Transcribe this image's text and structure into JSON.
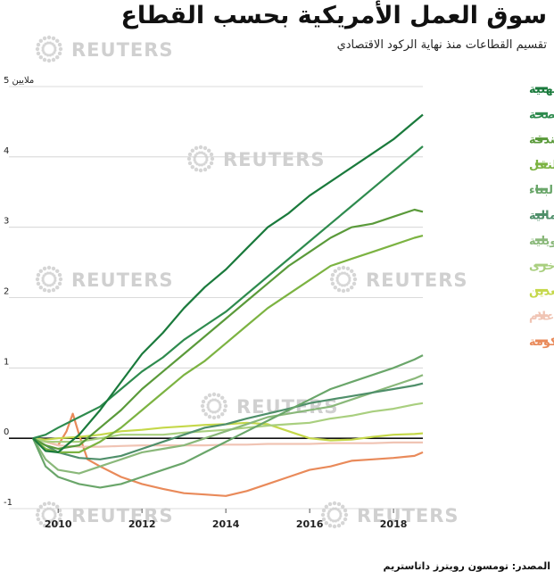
{
  "chart_data": {
    "type": "line",
    "title": "سوق العمل الأمريكية بحسب القطاع",
    "subtitle": "تقسيم القطاعات منذ نهاية الركود الاقتصادي",
    "y_ticks": [
      {
        "value": 5,
        "label": "5 ملايين"
      },
      {
        "value": 4,
        "label": "4"
      },
      {
        "value": 3,
        "label": "3"
      },
      {
        "value": 2,
        "label": "2"
      },
      {
        "value": 1,
        "label": "1"
      },
      {
        "value": 0,
        "label": "0"
      },
      {
        "value": -1,
        "label": "-1"
      }
    ],
    "x_ticks": [
      {
        "value": 2010,
        "label": "2010"
      },
      {
        "value": 2012,
        "label": "2012"
      },
      {
        "value": 2014,
        "label": "2014"
      },
      {
        "value": 2016,
        "label": "2016"
      },
      {
        "value": 2018,
        "label": "2018"
      }
    ],
    "xlim": [
      2009.4,
      2018.7
    ],
    "ylim": [
      -1,
      5
    ],
    "grid": "horizontal",
    "legend_position": "right",
    "series": [
      {
        "name": "الخدمات المهنية",
        "color": "#1a7a3c",
        "x": [
          2009.4,
          2009.7,
          2010.0,
          2010.5,
          2011.0,
          2011.5,
          2012.0,
          2012.5,
          2013.0,
          2013.5,
          2014.0,
          2014.5,
          2015.0,
          2015.5,
          2016.0,
          2016.5,
          2017.0,
          2017.5,
          2018.0,
          2018.5,
          2018.7
        ],
        "y": [
          0,
          -0.18,
          -0.2,
          0.05,
          0.4,
          0.8,
          1.2,
          1.5,
          1.85,
          2.15,
          2.4,
          2.7,
          3.0,
          3.2,
          3.45,
          3.65,
          3.85,
          4.05,
          4.25,
          4.5,
          4.6
        ]
      },
      {
        "name": "التعليم/الصحة",
        "color": "#2e8b4e",
        "x": [
          2009.4,
          2009.7,
          2010.0,
          2010.5,
          2011.0,
          2011.5,
          2012.0,
          2012.5,
          2013.0,
          2013.5,
          2014.0,
          2014.5,
          2015.0,
          2015.5,
          2016.0,
          2016.5,
          2017.0,
          2017.5,
          2018.0,
          2018.5,
          2018.7
        ],
        "y": [
          0,
          0.05,
          0.15,
          0.3,
          0.45,
          0.7,
          0.95,
          1.15,
          1.4,
          1.6,
          1.8,
          2.05,
          2.3,
          2.55,
          2.8,
          3.05,
          3.3,
          3.55,
          3.8,
          4.05,
          4.15
        ]
      },
      {
        "name": "الفندقة",
        "color": "#5a9a3a",
        "x": [
          2009.4,
          2009.7,
          2010.0,
          2010.5,
          2011.0,
          2011.5,
          2012.0,
          2012.5,
          2013.0,
          2013.5,
          2014.0,
          2014.5,
          2015.0,
          2015.5,
          2016.0,
          2016.5,
          2017.0,
          2017.5,
          2018.0,
          2018.5,
          2018.7
        ],
        "y": [
          0,
          -0.1,
          -0.15,
          -0.1,
          0.15,
          0.4,
          0.7,
          0.95,
          1.2,
          1.45,
          1.7,
          1.95,
          2.2,
          2.45,
          2.65,
          2.85,
          3.0,
          3.05,
          3.15,
          3.25,
          3.22
        ]
      },
      {
        "name": "لنقل",
        "color": "#7cb342",
        "x": [
          2009.4,
          2009.7,
          2010.0,
          2010.5,
          2011.0,
          2011.5,
          2012.0,
          2012.5,
          2013.0,
          2013.5,
          2014.0,
          2014.5,
          2015.0,
          2015.5,
          2016.0,
          2016.5,
          2017.0,
          2017.5,
          2018.0,
          2018.5,
          2018.7
        ],
        "y": [
          0,
          -0.15,
          -0.2,
          -0.2,
          -0.05,
          0.15,
          0.4,
          0.65,
          0.9,
          1.1,
          1.35,
          1.6,
          1.85,
          2.05,
          2.25,
          2.45,
          2.55,
          2.65,
          2.75,
          2.85,
          2.88
        ]
      },
      {
        "name": "البناء",
        "color": "#6aa66a",
        "x": [
          2009.4,
          2009.7,
          2010.0,
          2010.5,
          2011.0,
          2011.5,
          2012.0,
          2012.5,
          2013.0,
          2013.5,
          2014.0,
          2014.5,
          2015.0,
          2015.5,
          2016.0,
          2016.5,
          2017.0,
          2017.5,
          2018.0,
          2018.5,
          2018.7
        ],
        "y": [
          0,
          -0.4,
          -0.55,
          -0.65,
          -0.7,
          -0.65,
          -0.55,
          -0.45,
          -0.35,
          -0.2,
          -0.05,
          0.1,
          0.25,
          0.4,
          0.55,
          0.7,
          0.8,
          0.9,
          1.0,
          1.12,
          1.18
        ]
      },
      {
        "name": "المالية",
        "color": "#4f8f6a",
        "x": [
          2009.4,
          2009.7,
          2010.0,
          2010.5,
          2011.0,
          2011.5,
          2012.0,
          2012.5,
          2013.0,
          2013.5,
          2014.0,
          2014.5,
          2015.0,
          2015.5,
          2016.0,
          2016.5,
          2017.0,
          2017.5,
          2018.0,
          2018.5,
          2018.7
        ],
        "y": [
          0,
          -0.1,
          -0.2,
          -0.28,
          -0.3,
          -0.25,
          -0.15,
          -0.05,
          0.05,
          0.15,
          0.2,
          0.28,
          0.35,
          0.42,
          0.5,
          0.55,
          0.6,
          0.65,
          0.7,
          0.75,
          0.78
        ]
      },
      {
        "name": "الصناعات التحويلية",
        "color": "#8ab87a",
        "x": [
          2009.4,
          2009.7,
          2010.0,
          2010.5,
          2011.0,
          2011.5,
          2012.0,
          2012.5,
          2013.0,
          2013.5,
          2014.0,
          2014.5,
          2015.0,
          2015.5,
          2016.0,
          2016.5,
          2017.0,
          2017.5,
          2018.0,
          2018.5,
          2018.7
        ],
        "y": [
          0,
          -0.3,
          -0.45,
          -0.5,
          -0.4,
          -0.3,
          -0.2,
          -0.15,
          -0.1,
          0.0,
          0.1,
          0.2,
          0.3,
          0.35,
          0.4,
          0.45,
          0.55,
          0.65,
          0.75,
          0.85,
          0.9
        ]
      },
      {
        "name": "أخرى",
        "color": "#a9cf7f",
        "x": [
          2009.4,
          2009.7,
          2010.0,
          2010.5,
          2011.0,
          2011.5,
          2012.0,
          2012.5,
          2013.0,
          2013.5,
          2014.0,
          2014.5,
          2015.0,
          2015.5,
          2016.0,
          2016.5,
          2017.0,
          2017.5,
          2018.0,
          2018.5,
          2018.7
        ],
        "y": [
          0,
          -0.05,
          -0.05,
          -0.05,
          0.0,
          0.05,
          0.05,
          0.05,
          0.08,
          0.1,
          0.12,
          0.15,
          0.18,
          0.2,
          0.22,
          0.28,
          0.32,
          0.38,
          0.42,
          0.48,
          0.5
        ]
      },
      {
        "name": "التعدين",
        "color": "#c5d84a",
        "x": [
          2009.4,
          2009.7,
          2010.0,
          2010.5,
          2011.0,
          2011.5,
          2012.0,
          2012.5,
          2013.0,
          2013.5,
          2014.0,
          2014.5,
          2015.0,
          2015.5,
          2016.0,
          2016.5,
          2017.0,
          2017.5,
          2018.0,
          2018.5,
          2018.7
        ],
        "y": [
          0,
          -0.02,
          0.0,
          0.02,
          0.05,
          0.1,
          0.12,
          0.15,
          0.17,
          0.19,
          0.2,
          0.22,
          0.2,
          0.1,
          0.0,
          -0.03,
          -0.02,
          0.02,
          0.05,
          0.06,
          0.07
        ]
      },
      {
        "name": "الإعلام",
        "color": "#f0c4b4",
        "x": [
          2009.4,
          2009.7,
          2010.0,
          2010.5,
          2011.0,
          2011.5,
          2012.0,
          2012.5,
          2013.0,
          2013.5,
          2014.0,
          2014.5,
          2015.0,
          2015.5,
          2016.0,
          2016.5,
          2017.0,
          2017.5,
          2018.0,
          2018.5,
          2018.7
        ],
        "y": [
          0,
          -0.05,
          -0.1,
          -0.12,
          -0.12,
          -0.11,
          -0.1,
          -0.1,
          -0.1,
          -0.1,
          -0.09,
          -0.09,
          -0.08,
          -0.08,
          -0.08,
          -0.07,
          -0.07,
          -0.07,
          -0.06,
          -0.06,
          -0.06
        ]
      },
      {
        "name": "الحكومة",
        "color": "#e98a5a",
        "x": [
          2009.4,
          2009.7,
          2010.0,
          2010.2,
          2010.35,
          2010.5,
          2010.7,
          2011.0,
          2011.5,
          2012.0,
          2012.5,
          2013.0,
          2013.5,
          2014.0,
          2014.5,
          2015.0,
          2015.5,
          2016.0,
          2016.5,
          2017.0,
          2017.5,
          2018.0,
          2018.5,
          2018.7
        ],
        "y": [
          0,
          -0.05,
          -0.1,
          0.1,
          0.35,
          0.05,
          -0.3,
          -0.4,
          -0.55,
          -0.65,
          -0.72,
          -0.78,
          -0.8,
          -0.82,
          -0.75,
          -0.65,
          -0.55,
          -0.45,
          -0.4,
          -0.32,
          -0.3,
          -0.28,
          -0.25,
          -0.2
        ]
      }
    ]
  },
  "source": "المصدر: تومسون رويترز داتاستريم",
  "watermark": "REUTERS"
}
